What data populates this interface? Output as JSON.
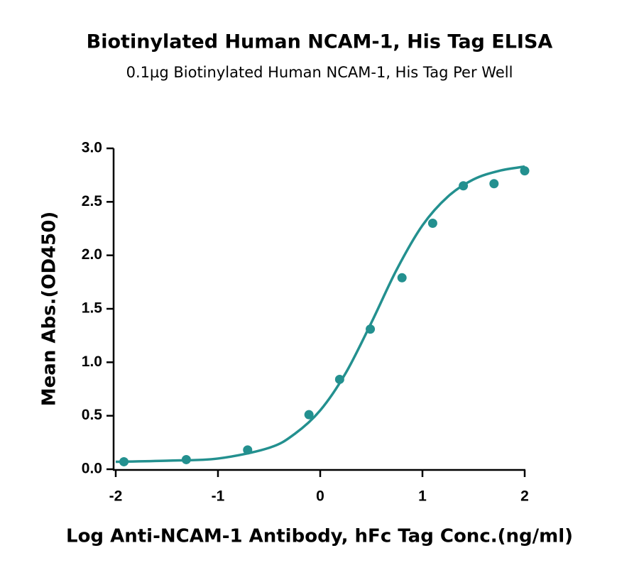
{
  "chart_data": {
    "type": "scatter",
    "title": "Biotinylated Human NCAM-1, His Tag ELISA",
    "subtitle": "0.1µg Biotinylated Human NCAM-1, His Tag Per Well",
    "x_label": "Log Anti-NCAM-1 Antibody, hFc Tag Conc.(ng/ml)",
    "y_label": "Mean Abs.(OD450)",
    "color": "#23908f",
    "x": [
      -1.92,
      -1.31,
      -0.71,
      -0.11,
      0.19,
      0.49,
      0.8,
      1.1,
      1.4,
      1.7,
      2.0
    ],
    "values": [
      0.07,
      0.09,
      0.18,
      0.51,
      0.84,
      1.31,
      1.79,
      2.3,
      2.65,
      2.67,
      2.79
    ],
    "fit": {
      "x": [
        -2,
        -1.5,
        -1,
        -0.5,
        -0.25,
        0,
        0.25,
        0.5,
        0.75,
        1,
        1.25,
        1.5,
        1.75,
        2
      ],
      "values": [
        0.07,
        0.08,
        0.1,
        0.2,
        0.33,
        0.55,
        0.9,
        1.37,
        1.87,
        2.28,
        2.55,
        2.71,
        2.79,
        2.83
      ]
    },
    "xlim": [
      -2,
      2
    ],
    "xticks": [
      -2,
      -1,
      0,
      1,
      2
    ],
    "ylim": [
      0,
      3
    ],
    "yticks": [
      {
        "value": 0,
        "label": "0.0"
      },
      {
        "value": 0.5,
        "label": "0.5"
      },
      {
        "value": 1,
        "label": "1.0"
      },
      {
        "value": 1.5,
        "label": "1.5"
      },
      {
        "value": 2,
        "label": "2.0"
      },
      {
        "value": 2.5,
        "label": "2.5"
      },
      {
        "value": 3,
        "label": "3.0"
      }
    ]
  }
}
